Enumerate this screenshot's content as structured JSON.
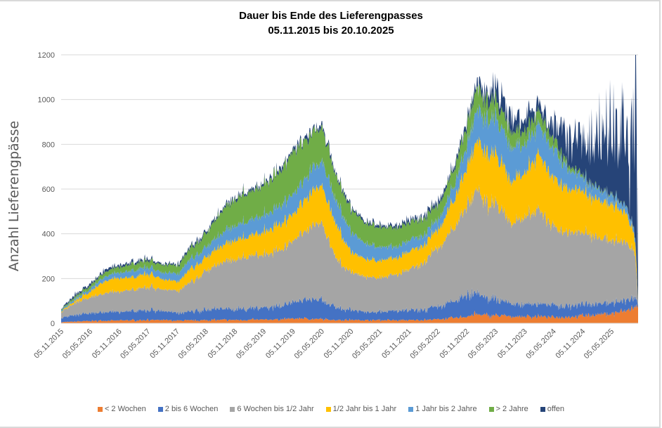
{
  "chart_data": {
    "type": "area",
    "stacked": true,
    "title": "Dauer bis Ende des Lieferengpasses",
    "subtitle": "05.11.2015 bis  20.10.2025",
    "xlabel": "",
    "ylabel": "Anzahl Lieferengpässe",
    "ylim": [
      0,
      1200
    ],
    "yticks": [
      0,
      200,
      400,
      600,
      800,
      1000,
      1200
    ],
    "grid": true,
    "legend_position": "bottom",
    "x_start": "2015-11-05",
    "x_end": "2025-10-20",
    "xtick_labels": [
      "05.11.2015",
      "05.05.2016",
      "05.11.2016",
      "05.05.2017",
      "05.11.2017",
      "05.05.2018",
      "05.11.2018",
      "05.05.2019",
      "05.11.2019",
      "05.05.2020",
      "05.11.2020",
      "05.05.2021",
      "05.11.2021",
      "05.05.2022",
      "05.11.2022",
      "05.05.2023",
      "05.11.2023",
      "05.05.2024",
      "05.11.2024",
      "05.05.2025"
    ],
    "x": [
      "2015-11-05",
      "2016-02-05",
      "2016-05-05",
      "2016-08-05",
      "2016-11-05",
      "2017-02-05",
      "2017-05-05",
      "2017-08-05",
      "2017-11-05",
      "2018-02-05",
      "2018-05-05",
      "2018-08-05",
      "2018-11-05",
      "2019-02-05",
      "2019-05-05",
      "2019-08-05",
      "2019-11-05",
      "2020-01-05",
      "2020-03-05",
      "2020-05-05",
      "2020-08-05",
      "2020-11-05",
      "2021-02-05",
      "2021-05-05",
      "2021-08-05",
      "2021-11-05",
      "2022-02-05",
      "2022-05-05",
      "2022-08-05",
      "2022-11-05",
      "2023-01-05",
      "2023-03-05",
      "2023-05-05",
      "2023-08-05",
      "2023-11-05",
      "2024-02-05",
      "2024-05-05",
      "2024-08-05",
      "2024-11-05",
      "2025-02-05",
      "2025-05-05",
      "2025-08-05",
      "2025-10-01",
      "2025-10-20"
    ],
    "series": [
      {
        "name": "< 2 Wochen",
        "color": "#ED7D31",
        "values": [
          5,
          8,
          10,
          12,
          12,
          14,
          15,
          14,
          12,
          12,
          14,
          15,
          15,
          15,
          16,
          18,
          20,
          22,
          20,
          18,
          15,
          15,
          14,
          14,
          13,
          14,
          15,
          18,
          22,
          30,
          40,
          35,
          35,
          30,
          30,
          30,
          28,
          30,
          35,
          40,
          45,
          55,
          70,
          80
        ]
      },
      {
        "name": "2 bis 6 Wochen",
        "color": "#4472C4",
        "values": [
          20,
          28,
          35,
          38,
          40,
          40,
          45,
          40,
          35,
          40,
          45,
          50,
          50,
          50,
          55,
          60,
          70,
          80,
          90,
          80,
          55,
          45,
          40,
          40,
          40,
          42,
          45,
          55,
          70,
          90,
          100,
          80,
          70,
          60,
          55,
          55,
          55,
          50,
          50,
          50,
          50,
          45,
          40,
          10
        ]
      },
      {
        "name": "6 Wochen bis 1/2 Jahr",
        "color": "#A5A5A5",
        "values": [
          25,
          55,
          70,
          85,
          90,
          95,
          105,
          95,
          100,
          130,
          175,
          200,
          225,
          230,
          240,
          250,
          270,
          300,
          330,
          340,
          220,
          170,
          160,
          150,
          160,
          180,
          210,
          260,
          320,
          400,
          460,
          420,
          430,
          360,
          390,
          420,
          350,
          330,
          320,
          300,
          280,
          260,
          200,
          5
        ]
      },
      {
        "name": "1/2 Jahr bis 1 Jahr",
        "color": "#FFC000",
        "values": [
          3,
          10,
          25,
          55,
          60,
          55,
          60,
          45,
          40,
          60,
          60,
          75,
          85,
          90,
          100,
          115,
          120,
          140,
          150,
          170,
          150,
          90,
          80,
          75,
          75,
          80,
          80,
          80,
          120,
          170,
          220,
          220,
          220,
          190,
          200,
          250,
          220,
          200,
          180,
          170,
          160,
          130,
          70,
          3
        ]
      },
      {
        "name": "1 Jahr bis 2 Jahre",
        "color": "#5B9BD5",
        "values": [
          5,
          10,
          12,
          20,
          25,
          30,
          30,
          30,
          35,
          45,
          45,
          55,
          65,
          70,
          75,
          80,
          90,
          90,
          100,
          110,
          110,
          90,
          70,
          60,
          50,
          50,
          45,
          45,
          60,
          100,
          140,
          150,
          160,
          150,
          130,
          130,
          130,
          90,
          60,
          50,
          40,
          30,
          20,
          2
        ]
      },
      {
        "name": "> 2 Jahre",
        "color": "#70AD47",
        "values": [
          4,
          10,
          15,
          20,
          25,
          30,
          30,
          35,
          35,
          50,
          60,
          95,
          120,
          125,
          135,
          150,
          190,
          180,
          160,
          150,
          110,
          100,
          90,
          90,
          85,
          80,
          75,
          65,
          70,
          90,
          100,
          80,
          80,
          70,
          60,
          60,
          45,
          20,
          10,
          5,
          5,
          3,
          2,
          1
        ]
      },
      {
        "name": "offen",
        "color": "#264478",
        "values": [
          3,
          9,
          8,
          10,
          8,
          10,
          10,
          6,
          8,
          8,
          10,
          10,
          10,
          10,
          10,
          12,
          15,
          15,
          15,
          12,
          10,
          10,
          10,
          11,
          12,
          14,
          15,
          17,
          18,
          20,
          30,
          40,
          55,
          60,
          55,
          35,
          55,
          150,
          185,
          215,
          250,
          300,
          460,
          790
        ]
      }
    ]
  }
}
